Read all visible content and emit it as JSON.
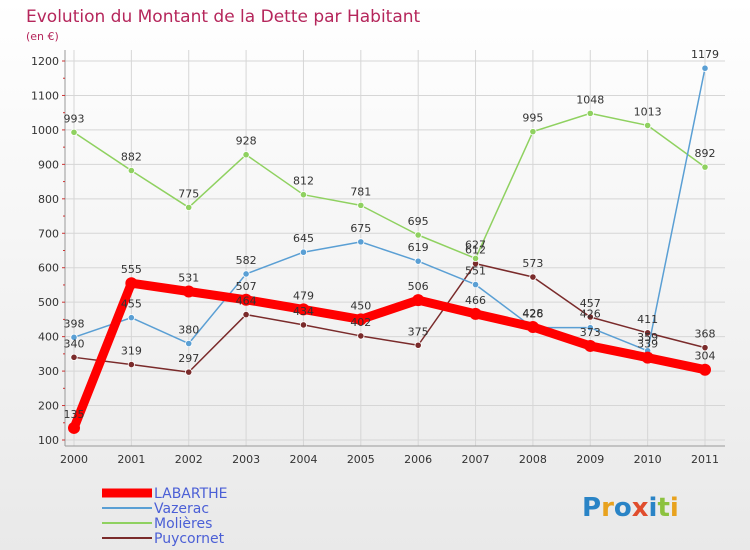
{
  "chart_data": {
    "type": "line",
    "title": "Evolution du Montant de la Dette par Habitant",
    "ylabel": "(en €)",
    "xlabel": "",
    "x": [
      "2000",
      "2001",
      "2002",
      "2003",
      "2004",
      "2005",
      "2006",
      "2007",
      "2008",
      "2009",
      "2010",
      "2011"
    ],
    "ylim": [
      100,
      1200
    ],
    "yticks": [
      100,
      200,
      300,
      400,
      500,
      600,
      700,
      800,
      900,
      1000,
      1100,
      1200
    ],
    "grid": true,
    "legend_position": "bottom-left",
    "series": [
      {
        "name": "LABARTHE",
        "color": "#ff0000",
        "values": [
          135,
          555,
          531,
          507,
          479,
          450,
          506,
          466,
          428,
          373,
          339,
          304
        ]
      },
      {
        "name": "Vazerac",
        "color": "#5a9fd4",
        "values": [
          398,
          455,
          380,
          582,
          645,
          675,
          619,
          551,
          426,
          426,
          359,
          1179
        ]
      },
      {
        "name": "Molières",
        "color": "#8fd160",
        "values": [
          993,
          882,
          775,
          928,
          812,
          781,
          695,
          627,
          995,
          1048,
          1013,
          892
        ]
      },
      {
        "name": "Puycornet",
        "color": "#7a2b2b",
        "values": [
          340,
          319,
          297,
          464,
          434,
          402,
          375,
          612,
          573,
          457,
          411,
          368
        ]
      }
    ]
  }
}
